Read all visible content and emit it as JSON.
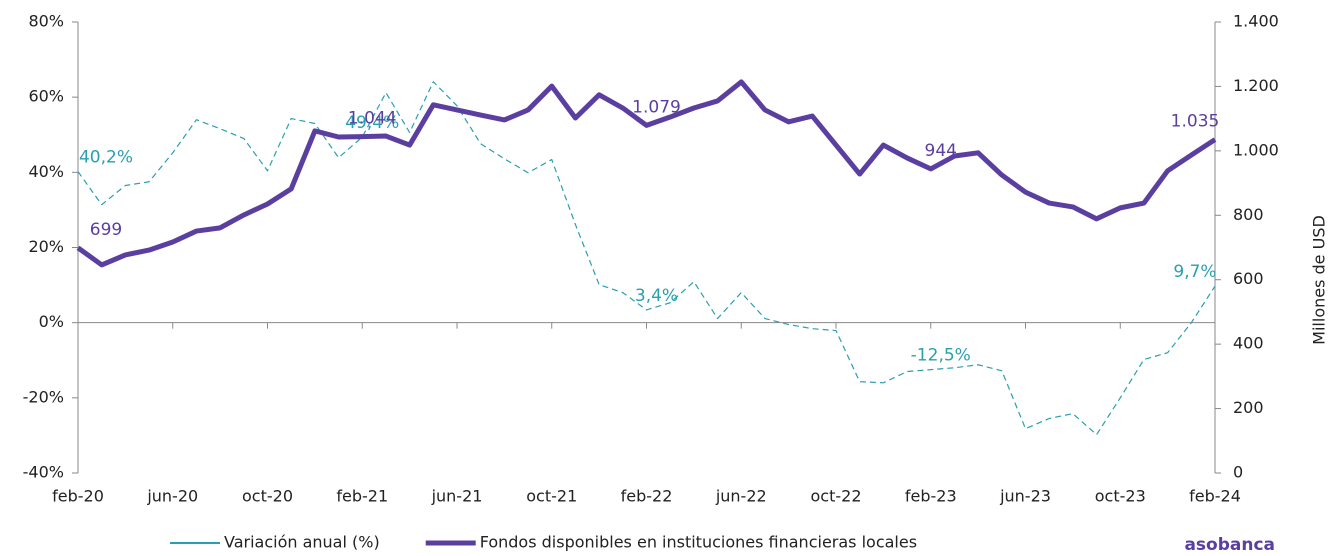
{
  "chart_data": {
    "type": "line",
    "categories": [
      "feb-20",
      null,
      null,
      null,
      "jun-20",
      null,
      null,
      null,
      "oct-20",
      null,
      null,
      null,
      "feb-21",
      null,
      null,
      null,
      "jun-21",
      null,
      null,
      null,
      "oct-21",
      null,
      null,
      null,
      "feb-22",
      null,
      null,
      null,
      "jun-22",
      null,
      null,
      null,
      "oct-22",
      null,
      null,
      null,
      "feb-23",
      null,
      null,
      null,
      "jun-23",
      null,
      null,
      null,
      "oct-23",
      null,
      null,
      null,
      "feb-24"
    ],
    "series": [
      {
        "name": "Variación anual (%)",
        "color": "#2a9fb0",
        "dashed": true,
        "values": [
          40.2,
          31.4,
          36.5,
          37.5,
          45.2,
          54.0,
          51.6,
          49.0,
          40.4,
          54.3,
          53.0,
          43.9,
          49.4,
          61.2,
          50.6,
          64.1,
          57.7,
          47.6,
          43.6,
          39.9,
          43.4,
          26.1,
          10.1,
          8.0,
          3.4,
          5.3,
          10.9,
          1.1,
          8.0,
          1.1,
          -0.5,
          -1.6,
          -2.1,
          -15.7,
          -16.0,
          -13.0,
          -12.5,
          -12.0,
          -11.2,
          -12.8,
          -28.2,
          -25.5,
          -24.2,
          -29.8,
          -20.0,
          -9.8,
          -8.0,
          0,
          9.7
        ],
        "value_labels": [
          "40,2%",
          null,
          null,
          null,
          null,
          null,
          null,
          null,
          null,
          null,
          null,
          null,
          "49,4%",
          null,
          null,
          null,
          null,
          null,
          null,
          null,
          null,
          null,
          null,
          null,
          "3,4%",
          null,
          null,
          null,
          null,
          null,
          null,
          null,
          null,
          null,
          null,
          null,
          "-12,5%",
          null,
          null,
          null,
          null,
          null,
          null,
          null,
          null,
          null,
          null,
          null,
          "9,7%"
        ]
      },
      {
        "name": "Fondos disponibles en instituciones financieras locales",
        "color": "#5b3fa0",
        "axis": "y2",
        "values": [
          699,
          646,
          677,
          692,
          717,
          751,
          761,
          801,
          835,
          882,
          1062,
          1043,
          1044,
          1046,
          1018,
          1143,
          1127,
          1111,
          1096,
          1127,
          1201,
          1102,
          1174,
          1133,
          1079,
          1105,
          1133,
          1155,
          1214,
          1127,
          1090,
          1108,
          1018,
          928,
          1018,
          978,
          944,
          984,
          994,
          925,
          872,
          838,
          826,
          789,
          823,
          838,
          938,
          987,
          1035
        ],
        "value_labels": [
          "699",
          null,
          null,
          null,
          null,
          null,
          null,
          null,
          null,
          null,
          null,
          null,
          "1.044",
          null,
          null,
          null,
          null,
          null,
          null,
          null,
          null,
          null,
          null,
          null,
          "1.079",
          null,
          null,
          null,
          null,
          null,
          null,
          null,
          null,
          null,
          null,
          null,
          "944",
          null,
          null,
          null,
          null,
          null,
          null,
          null,
          null,
          null,
          null,
          null,
          "1.035"
        ]
      }
    ],
    "ylim": [
      -40,
      80
    ],
    "yticks": [
      {
        "value": -40,
        "label": "-40%"
      },
      {
        "value": -20,
        "label": "-20%"
      },
      {
        "value": 0,
        "label": "0%"
      },
      {
        "value": 20,
        "label": "20%"
      },
      {
        "value": 40,
        "label": "40%"
      },
      {
        "value": 60,
        "label": "60%"
      },
      {
        "value": 80,
        "label": "80%"
      }
    ],
    "y2lim": [
      0,
      1400
    ],
    "y2ticks": [
      0,
      200,
      400,
      600,
      800,
      {
        "value": 1000,
        "label": "1.000"
      },
      {
        "value": 1200,
        "label": "1.200"
      },
      {
        "value": 1400,
        "label": "1.400"
      }
    ],
    "y2label": "Millones de USD",
    "legend": "bottom",
    "logo": "asobanca"
  }
}
